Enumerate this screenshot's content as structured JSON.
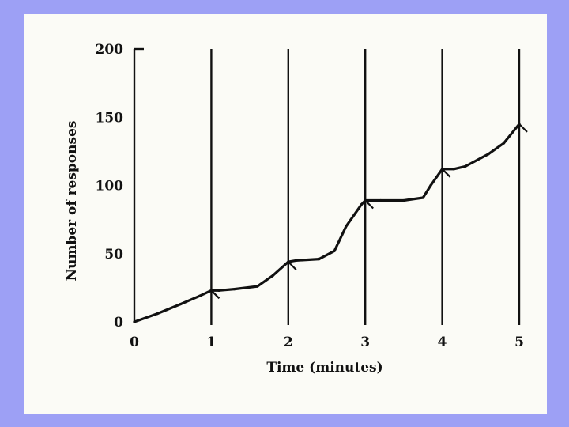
{
  "chart_data": {
    "type": "line",
    "xlabel": "Time (minutes)",
    "ylabel": "Number of responses",
    "xlim": [
      0,
      5
    ],
    "ylim": [
      0,
      200
    ],
    "x_ticks": [
      "0",
      "1",
      "2",
      "3",
      "4",
      "5"
    ],
    "y_ticks": [
      "0",
      "50",
      "100",
      "150",
      "200"
    ],
    "grid": "vertical lines at each minute",
    "series": [
      {
        "x": [
          0,
          0.3,
          0.6,
          0.85,
          1.0,
          1.1,
          1.3,
          1.6,
          1.8,
          2.0,
          2.1,
          2.4,
          2.6,
          2.75,
          2.95,
          3.0,
          3.2,
          3.5,
          3.75,
          3.85,
          4.0,
          4.15,
          4.3,
          4.6,
          4.8,
          5.0
        ],
        "y": [
          0,
          6,
          13,
          19,
          23,
          23,
          24,
          26,
          34,
          44,
          45,
          46,
          52,
          70,
          86,
          89,
          89,
          89,
          91,
          100,
          112,
          112,
          114,
          123,
          131,
          145
        ]
      }
    ],
    "annotations": {
      "reinforcement_markers_x": [
        1,
        2,
        3,
        4,
        5
      ]
    }
  }
}
